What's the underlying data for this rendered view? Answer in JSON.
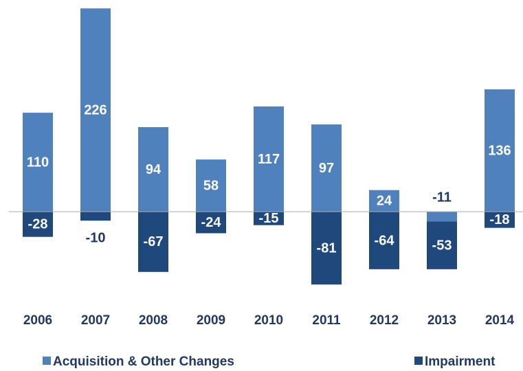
{
  "chart_data": {
    "type": "bar",
    "stacked": true,
    "categories": [
      "2006",
      "2007",
      "2008",
      "2009",
      "2010",
      "2011",
      "2012",
      "2013",
      "2014"
    ],
    "series": [
      {
        "name": "Acquisition & Other Changes",
        "color": "#4f81bd",
        "values": [
          110,
          226,
          94,
          58,
          117,
          97,
          24,
          -11,
          136
        ]
      },
      {
        "name": "Impairment",
        "color": "#1f497d",
        "values": [
          -28,
          -10,
          -67,
          -24,
          -15,
          -81,
          -64,
          -53,
          -18
        ]
      }
    ],
    "ylim": [
      -100,
      230
    ],
    "legend": "bottom"
  }
}
